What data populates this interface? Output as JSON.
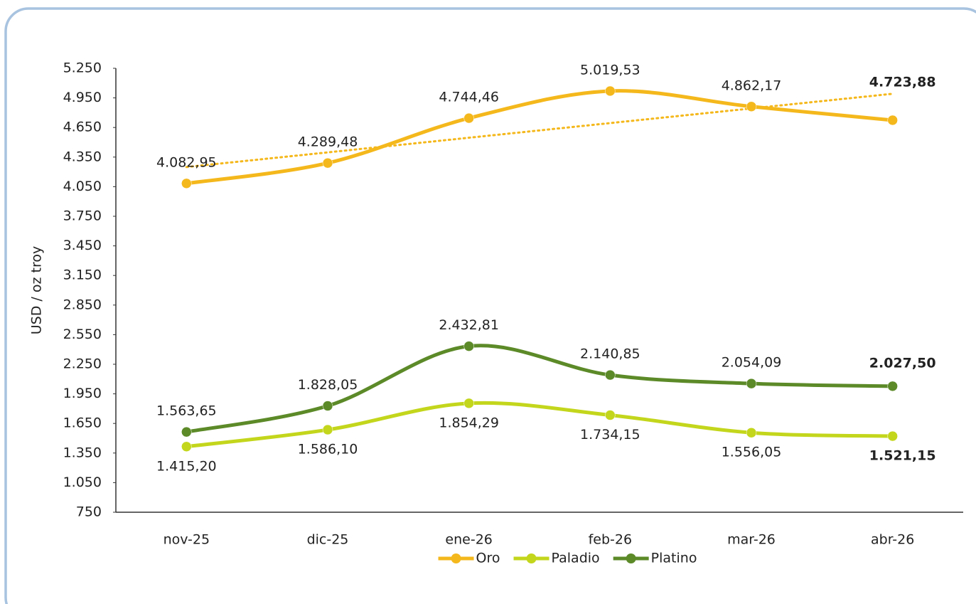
{
  "chart_data": {
    "type": "line",
    "y_label": "USD / oz troy",
    "categories": [
      "nov-25",
      "dic-25",
      "ene-26",
      "feb-26",
      "mar-26",
      "abr-26"
    ],
    "series": [
      {
        "name": "Oro",
        "color": "#f5b81c",
        "label_position": "above",
        "trendline": "linear",
        "values": [
          4082.95,
          4289.48,
          4744.46,
          5019.53,
          4862.17,
          4723.88
        ],
        "value_labels": [
          "4.082,95",
          "4.289,48",
          "4.744,46",
          "5.019,53",
          "4.862,17",
          "4.723,88"
        ]
      },
      {
        "name": "Paladio",
        "color": "#c3d61b",
        "label_position": "below",
        "values": [
          1415.2,
          1586.1,
          1854.29,
          1734.15,
          1556.05,
          1521.15
        ],
        "value_labels": [
          "1.415,20",
          "1.586,10",
          "1.854,29",
          "1.734,15",
          "1.556,05",
          "1.521,15"
        ]
      },
      {
        "name": "Platino",
        "color": "#5c8a28",
        "label_position": "above",
        "values": [
          1563.65,
          1828.05,
          2432.81,
          2140.85,
          2054.09,
          2027.5
        ],
        "value_labels": [
          "1.563,65",
          "1.828,05",
          "2.432,81",
          "2.140,85",
          "2.054,09",
          "2.027,50"
        ]
      }
    ],
    "ylim": [
      750,
      5250
    ],
    "yticks": [
      {
        "value": 750,
        "label": "750"
      },
      {
        "value": 1050,
        "label": "1.050"
      },
      {
        "value": 1350,
        "label": "1.350"
      },
      {
        "value": 1650,
        "label": "1.650"
      },
      {
        "value": 1950,
        "label": "1.950"
      },
      {
        "value": 2250,
        "label": "2.250"
      },
      {
        "value": 2550,
        "label": "2.550"
      },
      {
        "value": 2850,
        "label": "2.850"
      },
      {
        "value": 3150,
        "label": "3.150"
      },
      {
        "value": 3450,
        "label": "3.450"
      },
      {
        "value": 3750,
        "label": "3.750"
      },
      {
        "value": 4050,
        "label": "4.050"
      },
      {
        "value": 4350,
        "label": "4.350"
      },
      {
        "value": 4650,
        "label": "4.650"
      },
      {
        "value": 4950,
        "label": "4.950"
      },
      {
        "value": 5250,
        "label": "5.250"
      }
    ],
    "grid": false,
    "legend": "bottom"
  }
}
